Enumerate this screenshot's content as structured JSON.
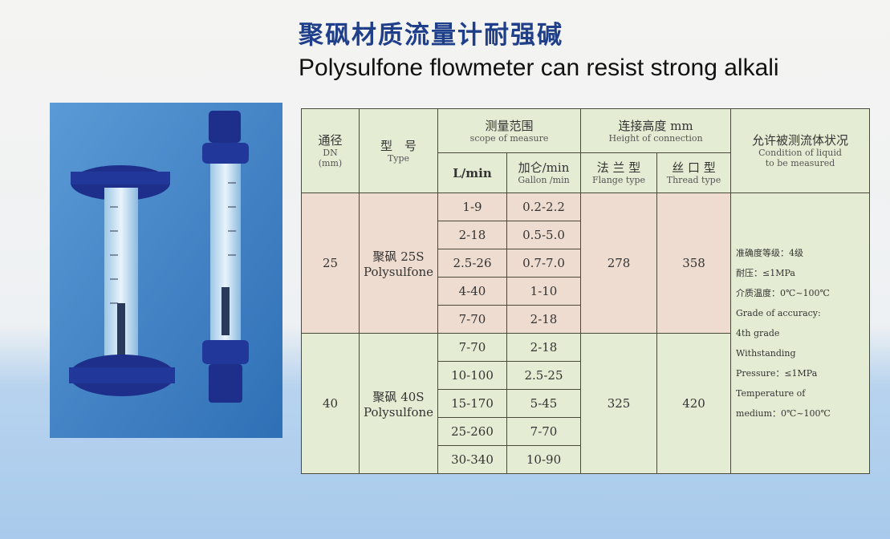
{
  "header": {
    "title": "聚砜材质流量计耐强碱",
    "subtitle": "Polysulfone flowmeter can resist strong alkali"
  },
  "table": {
    "headers": {
      "dn": [
        "通径",
        "DN",
        "(mm)"
      ],
      "type": [
        "型　号",
        "Type"
      ],
      "scope": [
        "测量范围",
        "scope of measure"
      ],
      "lpm": "L/min",
      "gpm": [
        "加仑/min",
        "Gallon /min"
      ],
      "height": [
        "连接高度 mm",
        "Height of connection"
      ],
      "flange": [
        "法 兰 型",
        "Flange type"
      ],
      "thread": [
        "丝 口 型",
        "Thread type"
      ],
      "condition": [
        "允许被测流体状况",
        "Condition of liquid",
        "to be measured"
      ]
    },
    "groups": [
      {
        "dn": 25,
        "type": [
          "聚砜 25S",
          "Polysulfone"
        ],
        "flange": 278,
        "thread": 358,
        "rows": [
          [
            "1-9",
            "0.2-2.2"
          ],
          [
            "2-18",
            "0.5-5.0"
          ],
          [
            "2.5-26",
            "0.7-7.0"
          ],
          [
            "4-40",
            "1-10"
          ],
          [
            "7-70",
            "2-18"
          ]
        ]
      },
      {
        "dn": 40,
        "type": [
          "聚砜 40S",
          "Polysulfone"
        ],
        "flange": 325,
        "thread": 420,
        "rows": [
          [
            "7-70",
            "2-18"
          ],
          [
            "10-100",
            "2.5-25"
          ],
          [
            "15-170",
            "5-45"
          ],
          [
            "25-260",
            "7-70"
          ],
          [
            "30-340",
            "10-90"
          ]
        ]
      }
    ],
    "condition": [
      "准确度等级：4级",
      "耐压：≤1MPa",
      "介质温度：0℃~100℃",
      "Grade of accuracy:",
      "4th grade",
      "Withstanding",
      "Pressure：≤1MPa",
      "Temperature of",
      "medium：0℃~100℃"
    ]
  }
}
